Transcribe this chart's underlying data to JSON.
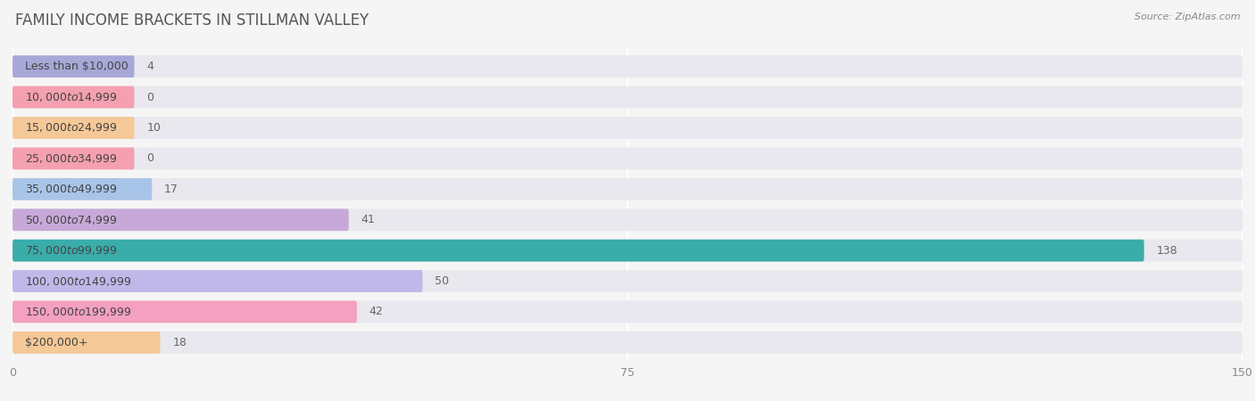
{
  "title": "FAMILY INCOME BRACKETS IN STILLMAN VALLEY",
  "source": "Source: ZipAtlas.com",
  "categories": [
    "Less than $10,000",
    "$10,000 to $14,999",
    "$15,000 to $24,999",
    "$25,000 to $34,999",
    "$35,000 to $49,999",
    "$50,000 to $74,999",
    "$75,000 to $99,999",
    "$100,000 to $149,999",
    "$150,000 to $199,999",
    "$200,000+"
  ],
  "values": [
    4,
    0,
    10,
    0,
    17,
    41,
    138,
    50,
    42,
    18
  ],
  "bar_colors": [
    "#a8a8d8",
    "#f4a0b0",
    "#f5c897",
    "#f4a0b0",
    "#a8c4e8",
    "#c8a8d8",
    "#3aadaa",
    "#c0b8e8",
    "#f4a0c0",
    "#f5c897"
  ],
  "bar_background_color": "#e8e8ee",
  "xlim": [
    0,
    150
  ],
  "xticks": [
    0,
    75,
    150
  ],
  "background_color": "#f5f5f5",
  "title_color": "#555555",
  "label_color": "#444444",
  "value_color_normal": "#666666",
  "value_color_white": "#ffffff",
  "grid_color": "#ffffff",
  "bar_height": 0.72,
  "title_fontsize": 12,
  "label_fontsize": 9,
  "value_fontsize": 9,
  "tick_fontsize": 9
}
